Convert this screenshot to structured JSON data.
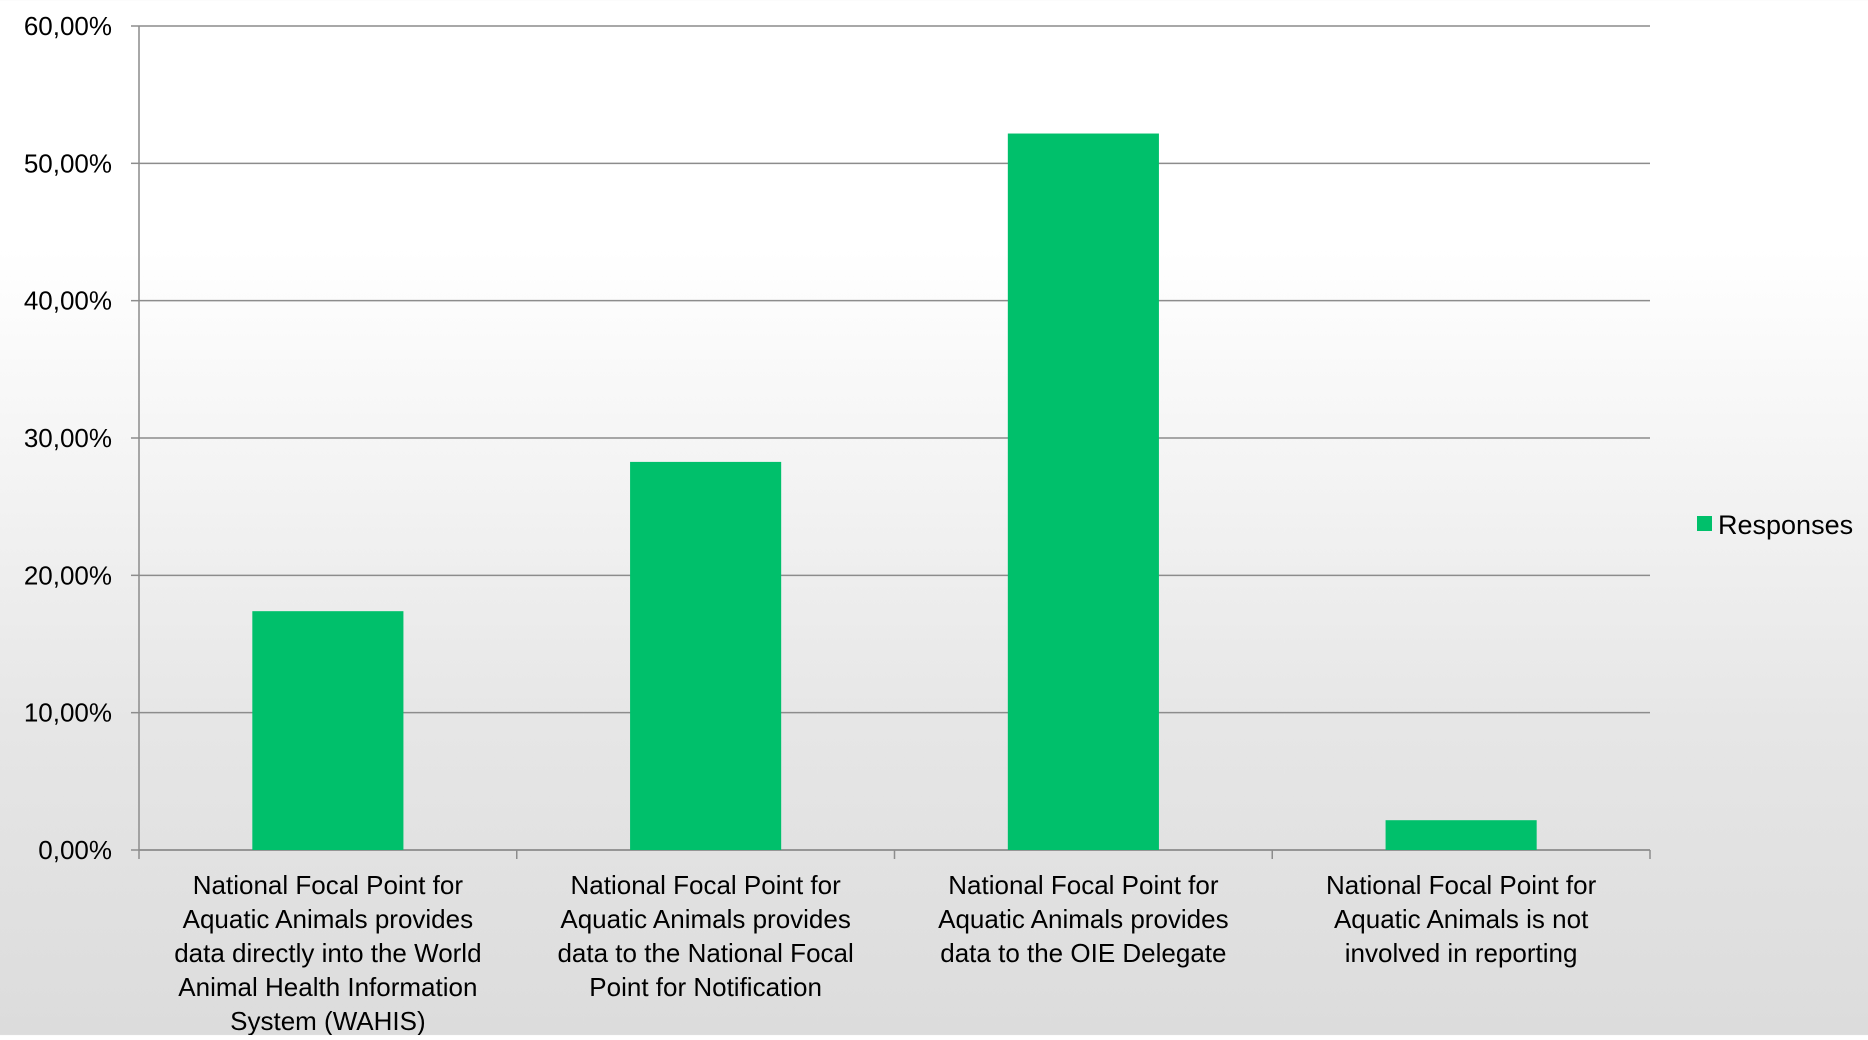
{
  "chart_data": {
    "type": "bar",
    "categories": [
      [
        "National Focal Point for",
        "Aquatic Animals provides",
        "data directly into the World",
        "Animal Health Information",
        "System (WAHIS)"
      ],
      [
        "National Focal Point for",
        "Aquatic Animals provides",
        "data to the National Focal",
        "Point for Notification"
      ],
      [
        "National Focal Point for",
        "Aquatic Animals provides",
        "data to the OIE Delegate"
      ],
      [
        "National Focal Point for",
        "Aquatic Animals is not",
        "involved in reporting"
      ]
    ],
    "series": [
      {
        "name": "Responses",
        "color": "#00c06b",
        "values": [
          17.39,
          28.26,
          52.17,
          2.17
        ]
      }
    ],
    "title": "",
    "xlabel": "",
    "ylabel": "",
    "ylim": [
      0,
      60
    ],
    "yticks": [
      "0,00%",
      "10,00%",
      "20,00%",
      "30,00%",
      "40,00%",
      "50,00%",
      "60,00%"
    ],
    "grid": true,
    "legend_position": "right"
  }
}
